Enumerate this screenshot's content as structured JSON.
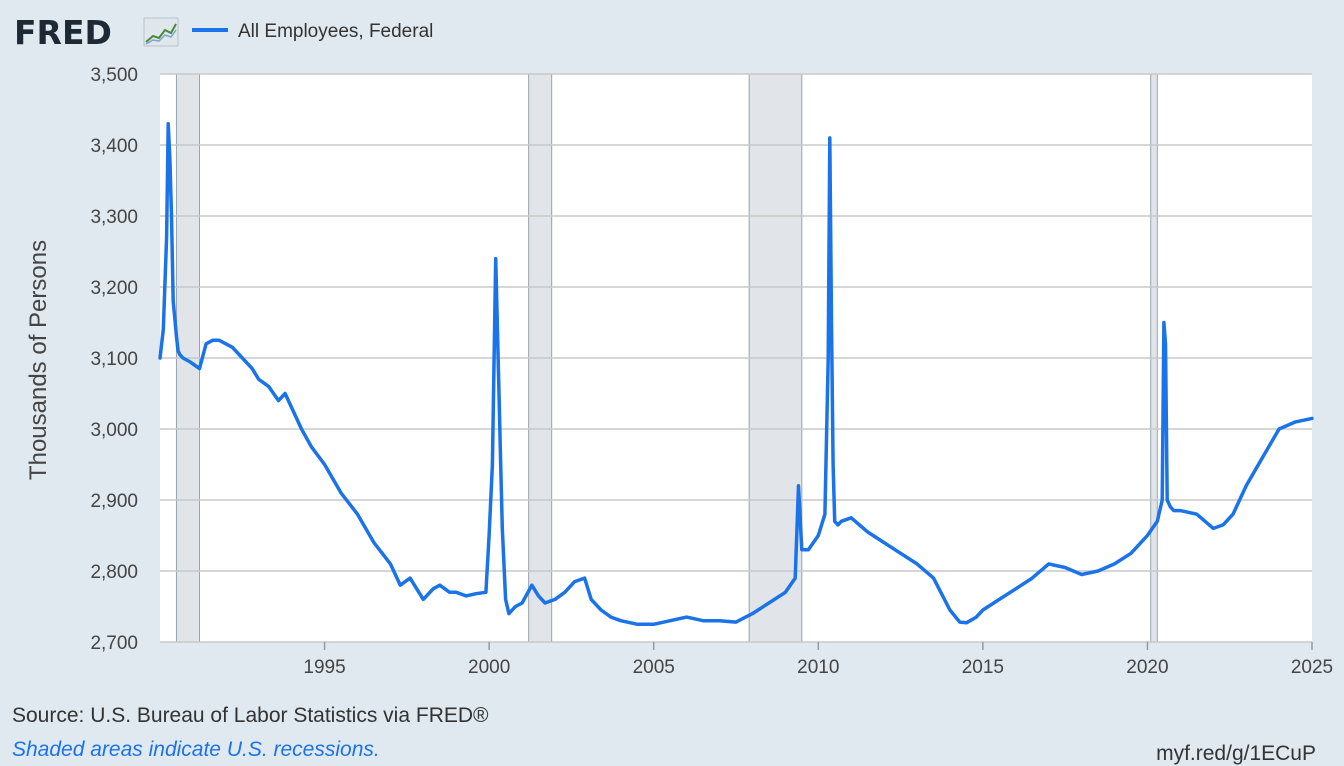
{
  "header": {
    "logo_text": "FRED",
    "legend_label": "All Employees, Federal"
  },
  "footer": {
    "source": "Source: U.S. Bureau of Labor Statistics via FRED®",
    "note": "Shaded areas indicate U.S. recessions.",
    "short_url": "myf.red/g/1ECuP"
  },
  "colors": {
    "background": "#e1e9f0",
    "plot_background": "#ffffff",
    "line": "#1a73e8",
    "recession_shading": "#e1e5ea",
    "grid": "#c8c8c8",
    "note_text": "#1a73e8"
  },
  "chart_data": {
    "type": "line",
    "title": "",
    "xlabel": "",
    "ylabel": "Thousands of Persons",
    "xlim": [
      1990.0,
      2025.0
    ],
    "ylim": [
      2700,
      3500
    ],
    "yticks": [
      2700,
      2800,
      2900,
      3000,
      3100,
      3200,
      3300,
      3400,
      3500
    ],
    "ytick_labels": [
      "2,700",
      "2,800",
      "2,900",
      "3,000",
      "3,100",
      "3,200",
      "3,300",
      "3,400",
      "3,500"
    ],
    "xticks": [
      1995,
      2000,
      2005,
      2010,
      2015,
      2020,
      2025
    ],
    "xtick_labels": [
      "1995",
      "2000",
      "2005",
      "2010",
      "2015",
      "2020",
      "2025"
    ],
    "grid": "horizontal",
    "recessions": [
      [
        1990.5,
        1991.2
      ],
      [
        2001.2,
        2001.9
      ],
      [
        2007.9,
        2009.5
      ],
      [
        2020.1,
        2020.3
      ]
    ],
    "series": [
      {
        "name": "All Employees, Federal",
        "x": [
          1990.0,
          1990.1,
          1990.2,
          1990.25,
          1990.3,
          1990.35,
          1990.4,
          1990.5,
          1990.55,
          1990.6,
          1990.7,
          1990.9,
          1991.2,
          1991.4,
          1991.6,
          1991.8,
          1992.0,
          1992.2,
          1992.5,
          1992.8,
          1993.0,
          1993.3,
          1993.6,
          1993.8,
          1994.0,
          1994.3,
          1994.6,
          1995.0,
          1995.5,
          1996.0,
          1996.5,
          1997.0,
          1997.3,
          1997.6,
          1997.8,
          1998.0,
          1998.3,
          1998.5,
          1998.8,
          1999.0,
          1999.3,
          1999.6,
          1999.9,
          2000.0,
          2000.1,
          2000.2,
          2000.3,
          2000.35,
          2000.4,
          2000.5,
          2000.6,
          2000.7,
          2000.8,
          2001.0,
          2001.3,
          2001.5,
          2001.7,
          2002.0,
          2002.3,
          2002.6,
          2002.9,
          2003.1,
          2003.4,
          2003.7,
          2004.0,
          2004.5,
          2005.0,
          2005.5,
          2006.0,
          2006.5,
          2007.0,
          2007.5,
          2008.0,
          2008.5,
          2009.0,
          2009.3,
          2009.4,
          2009.5,
          2009.7,
          2010.0,
          2010.2,
          2010.3,
          2010.35,
          2010.4,
          2010.45,
          2010.5,
          2010.6,
          2010.7,
          2011.0,
          2011.5,
          2012.0,
          2012.5,
          2013.0,
          2013.5,
          2014.0,
          2014.3,
          2014.5,
          2014.8,
          2015.0,
          2015.5,
          2016.0,
          2016.5,
          2017.0,
          2017.5,
          2018.0,
          2018.5,
          2019.0,
          2019.5,
          2020.0,
          2020.3,
          2020.45,
          2020.5,
          2020.55,
          2020.6,
          2020.7,
          2020.8,
          2021.0,
          2021.5,
          2022.0,
          2022.3,
          2022.6,
          2023.0,
          2023.5,
          2024.0,
          2024.5,
          2025.0
        ],
        "values": [
          3100,
          3140,
          3270,
          3430,
          3380,
          3300,
          3180,
          3130,
          3110,
          3105,
          3100,
          3095,
          3085,
          3120,
          3125,
          3125,
          3120,
          3115,
          3100,
          3085,
          3070,
          3060,
          3040,
          3050,
          3030,
          3000,
          2975,
          2950,
          2910,
          2880,
          2840,
          2810,
          2780,
          2790,
          2775,
          2760,
          2775,
          2780,
          2770,
          2770,
          2765,
          2768,
          2770,
          2850,
          2950,
          3240,
          3050,
          2950,
          2860,
          2760,
          2740,
          2745,
          2750,
          2755,
          2780,
          2765,
          2755,
          2760,
          2770,
          2785,
          2790,
          2760,
          2745,
          2735,
          2730,
          2725,
          2725,
          2730,
          2735,
          2730,
          2730,
          2728,
          2740,
          2755,
          2770,
          2790,
          2920,
          2830,
          2830,
          2850,
          2880,
          3100,
          3410,
          3150,
          2950,
          2870,
          2865,
          2870,
          2875,
          2855,
          2840,
          2825,
          2810,
          2790,
          2745,
          2728,
          2727,
          2735,
          2745,
          2760,
          2775,
          2790,
          2810,
          2805,
          2795,
          2800,
          2810,
          2825,
          2850,
          2870,
          2900,
          3150,
          3120,
          2900,
          2890,
          2885,
          2885,
          2880,
          2860,
          2865,
          2880,
          2920,
          2960,
          3000,
          3010,
          3015
        ]
      }
    ]
  }
}
